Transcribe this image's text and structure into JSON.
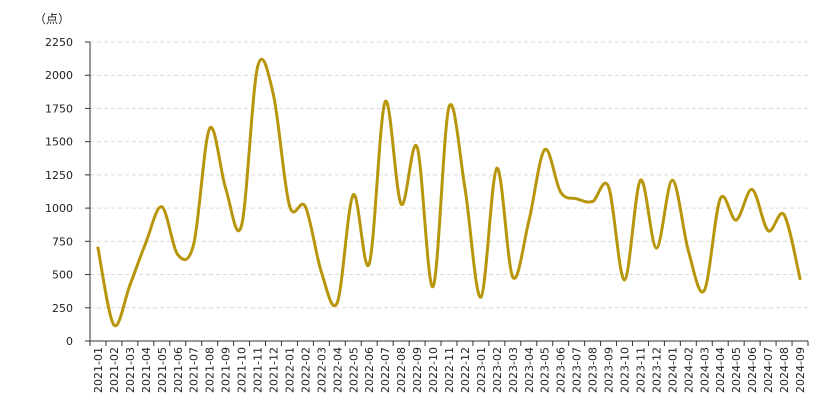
{
  "chart_data": {
    "type": "line",
    "unit_label": "（点）",
    "x": [
      "2021-01",
      "2021-02",
      "2021-03",
      "2021-04",
      "2021-05",
      "2021-06",
      "2021-07",
      "2021-08",
      "2021-09",
      "2021-10",
      "2021-11",
      "2021-12",
      "2022-01",
      "2022-02",
      "2022-03",
      "2022-04",
      "2022-05",
      "2022-06",
      "2022-07",
      "2022-08",
      "2022-09",
      "2022-10",
      "2022-11",
      "2022-12",
      "2023-01",
      "2023-02",
      "2023-03",
      "2023-04",
      "2023-05",
      "2023-06",
      "2023-07",
      "2023-08",
      "2023-09",
      "2023-10",
      "2023-11",
      "2023-12",
      "2024-01",
      "2024-02",
      "2024-03",
      "2024-04",
      "2024-05",
      "2024-06",
      "2024-07",
      "2024-08",
      "2024-09"
    ],
    "series": [
      {
        "values": [
          700,
          120,
          420,
          740,
          1010,
          650,
          730,
          1600,
          1150,
          870,
          2060,
          1850,
          1020,
          1010,
          520,
          290,
          1100,
          580,
          1800,
          1030,
          1460,
          410,
          1760,
          1150,
          330,
          1300,
          480,
          900,
          1440,
          1120,
          1070,
          1050,
          1160,
          460,
          1210,
          700,
          1210,
          680,
          380,
          1070,
          910,
          1140,
          830,
          950,
          470
        ],
        "color": "#b8960c"
      }
    ],
    "ylim": [
      0,
      2250
    ],
    "yticks": [
      0,
      250,
      500,
      750,
      1000,
      1250,
      1500,
      1750,
      2000,
      2250
    ],
    "grid": true,
    "legend": "none"
  }
}
